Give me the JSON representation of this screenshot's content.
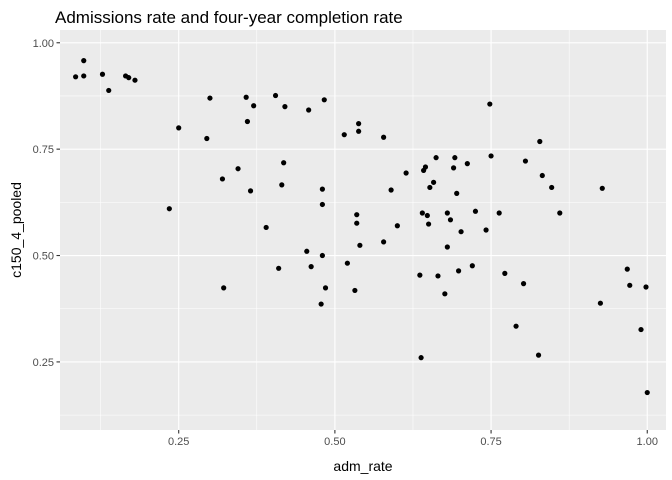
{
  "chart_data": {
    "type": "scatter",
    "title": "Admissions rate and four-year completion rate",
    "xlabel": "adm_rate",
    "ylabel": "c150_4_pooled",
    "xlim": [
      0.06,
      1.03
    ],
    "ylim": [
      0.09,
      1.03
    ],
    "x_ticks": [
      0.25,
      0.5,
      0.75,
      1.0
    ],
    "x_tick_labels": [
      "0.25",
      "0.50",
      "0.75",
      "1.00"
    ],
    "y_ticks": [
      0.25,
      0.5,
      0.75,
      1.0
    ],
    "y_tick_labels": [
      "0.25",
      "0.50",
      "0.75",
      "1.00"
    ],
    "grid": true,
    "panel_color": "#ebebeb",
    "grid_color": "#ffffff",
    "point_color": "#000000",
    "points": [
      [
        0.085,
        0.92
      ],
      [
        0.098,
        0.958
      ],
      [
        0.098,
        0.922
      ],
      [
        0.128,
        0.926
      ],
      [
        0.138,
        0.888
      ],
      [
        0.165,
        0.922
      ],
      [
        0.17,
        0.918
      ],
      [
        0.18,
        0.912
      ],
      [
        0.235,
        0.61
      ],
      [
        0.25,
        0.8
      ],
      [
        0.295,
        0.775
      ],
      [
        0.3,
        0.87
      ],
      [
        0.32,
        0.68
      ],
      [
        0.322,
        0.424
      ],
      [
        0.345,
        0.704
      ],
      [
        0.358,
        0.872
      ],
      [
        0.36,
        0.815
      ],
      [
        0.365,
        0.652
      ],
      [
        0.37,
        0.852
      ],
      [
        0.39,
        0.566
      ],
      [
        0.405,
        0.876
      ],
      [
        0.41,
        0.47
      ],
      [
        0.415,
        0.666
      ],
      [
        0.418,
        0.718
      ],
      [
        0.42,
        0.85
      ],
      [
        0.455,
        0.51
      ],
      [
        0.458,
        0.842
      ],
      [
        0.462,
        0.474
      ],
      [
        0.478,
        0.386
      ],
      [
        0.48,
        0.656
      ],
      [
        0.48,
        0.62
      ],
      [
        0.48,
        0.5
      ],
      [
        0.483,
        0.866
      ],
      [
        0.485,
        0.424
      ],
      [
        0.515,
        0.784
      ],
      [
        0.52,
        0.482
      ],
      [
        0.532,
        0.418
      ],
      [
        0.535,
        0.596
      ],
      [
        0.535,
        0.576
      ],
      [
        0.538,
        0.81
      ],
      [
        0.538,
        0.792
      ],
      [
        0.54,
        0.524
      ],
      [
        0.578,
        0.778
      ],
      [
        0.578,
        0.532
      ],
      [
        0.59,
        0.654
      ],
      [
        0.6,
        0.57
      ],
      [
        0.614,
        0.694
      ],
      [
        0.636,
        0.454
      ],
      [
        0.638,
        0.26
      ],
      [
        0.64,
        0.6
      ],
      [
        0.642,
        0.7
      ],
      [
        0.645,
        0.708
      ],
      [
        0.648,
        0.594
      ],
      [
        0.65,
        0.574
      ],
      [
        0.652,
        0.66
      ],
      [
        0.658,
        0.672
      ],
      [
        0.662,
        0.73
      ],
      [
        0.665,
        0.452
      ],
      [
        0.676,
        0.41
      ],
      [
        0.68,
        0.6
      ],
      [
        0.68,
        0.52
      ],
      [
        0.685,
        0.584
      ],
      [
        0.69,
        0.706
      ],
      [
        0.692,
        0.73
      ],
      [
        0.695,
        0.646
      ],
      [
        0.698,
        0.464
      ],
      [
        0.702,
        0.556
      ],
      [
        0.712,
        0.716
      ],
      [
        0.72,
        0.476
      ],
      [
        0.725,
        0.604
      ],
      [
        0.742,
        0.56
      ],
      [
        0.748,
        0.856
      ],
      [
        0.75,
        0.734
      ],
      [
        0.763,
        0.6
      ],
      [
        0.772,
        0.458
      ],
      [
        0.79,
        0.334
      ],
      [
        0.802,
        0.434
      ],
      [
        0.805,
        0.722
      ],
      [
        0.826,
        0.266
      ],
      [
        0.828,
        0.768
      ],
      [
        0.832,
        0.688
      ],
      [
        0.847,
        0.66
      ],
      [
        0.86,
        0.6
      ],
      [
        0.925,
        0.388
      ],
      [
        0.928,
        0.658
      ],
      [
        0.968,
        0.468
      ],
      [
        0.972,
        0.43
      ],
      [
        0.99,
        0.326
      ],
      [
        0.998,
        0.426
      ],
      [
        1.0,
        0.178
      ]
    ]
  }
}
